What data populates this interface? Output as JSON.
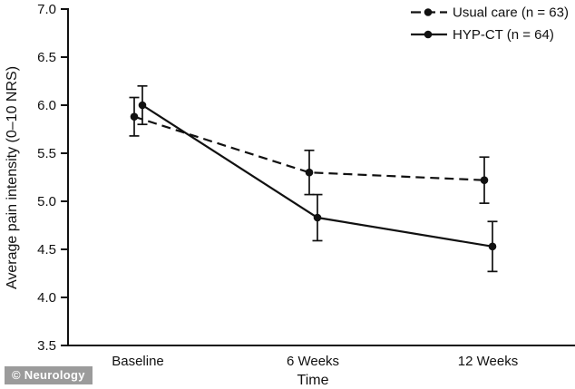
{
  "page": {
    "background": "#ffffff"
  },
  "watermark": {
    "text": "© Neurology",
    "background": "#9b9b9b",
    "color": "#ffffff"
  },
  "chart_data": {
    "type": "line",
    "title": "",
    "categories": [
      "Baseline",
      "6 Weeks",
      "12 Weeks"
    ],
    "xlabel": "Time",
    "ylabel": "Average pain intensity (0–10 NRS)",
    "ylim": [
      3.5,
      7.0
    ],
    "ytick_step": 0.5,
    "ytick_labels": [
      "7.0",
      "6.5",
      "6.0",
      "5.5",
      "5.0",
      "4.5",
      "4.0",
      "3.5"
    ],
    "grid": false,
    "legend_position": "top-right",
    "line_color": "#111111",
    "series": [
      {
        "name": "Usual care (n = 63)",
        "line_style": "dashed",
        "marker": "filled-circle",
        "values": [
          5.88,
          5.3,
          5.22
        ],
        "error_bars": [
          0.2,
          0.23,
          0.24
        ]
      },
      {
        "name": "HYP-CT (n = 64)",
        "line_style": "solid",
        "marker": "filled-circle",
        "values": [
          6.0,
          4.83,
          4.53
        ],
        "error_bars": [
          0.2,
          0.24,
          0.26
        ]
      }
    ]
  }
}
